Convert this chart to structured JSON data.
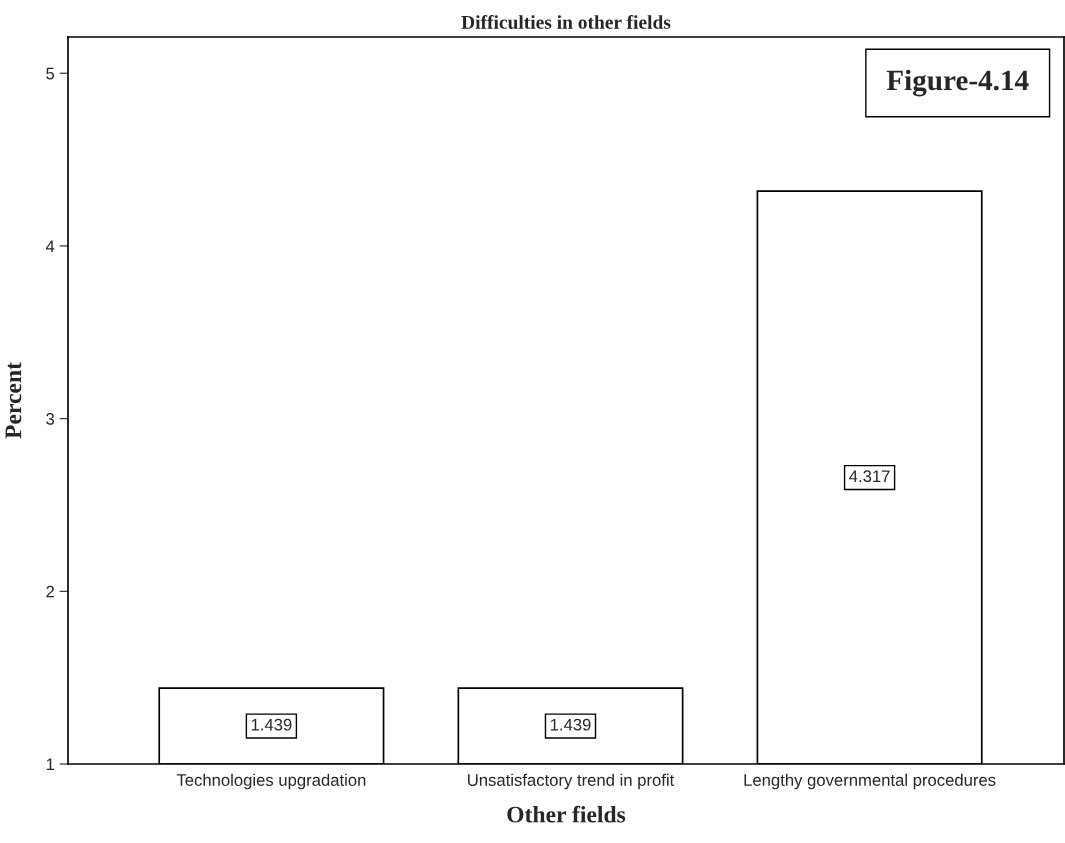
{
  "chart_data": {
    "type": "bar",
    "title": "Difficulties in other fields",
    "xlabel": "Other fields",
    "ylabel": "Percent",
    "categories": [
      "Technologies upgradation",
      "Unsatisfactory trend in profit",
      "Lengthy governmental procedures"
    ],
    "values": [
      1.439,
      1.439,
      4.317
    ],
    "color": "#ffffff",
    "ylim": [
      1,
      5.21
    ],
    "yticks": [
      1,
      2,
      3,
      4,
      5
    ],
    "grid": false,
    "data_labels": true,
    "annotations": [
      "Figure-4.14"
    ]
  }
}
